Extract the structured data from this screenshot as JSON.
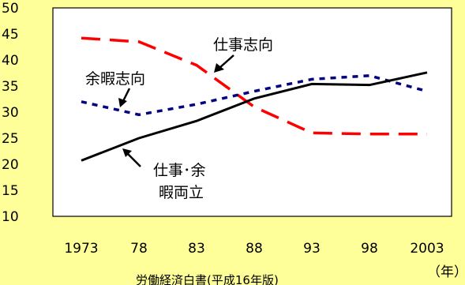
{
  "chart_data": {
    "type": "line",
    "categories": [
      "1973",
      "78",
      "83",
      "88",
      "93",
      "98",
      "2003"
    ],
    "x_unit_label": "（年）",
    "ylim": [
      10,
      50
    ],
    "y_ticks": [
      10,
      15,
      20,
      25,
      30,
      35,
      40,
      45,
      50
    ],
    "grid": false,
    "legend": "none",
    "series": [
      {
        "name": "仕事志向",
        "color": "#ff0000",
        "style": "dashed",
        "values": [
          44.2,
          43.5,
          39,
          31,
          26,
          25.8,
          25.8
        ]
      },
      {
        "name": "余暇志向",
        "color": "#000080",
        "style": "dotted",
        "values": [
          32,
          29.5,
          31.5,
          34,
          36.3,
          37,
          34
        ]
      },
      {
        "name": "仕事・余暇両立",
        "color": "#000000",
        "style": "solid",
        "values": [
          20.7,
          25,
          28.3,
          32.6,
          35.4,
          35.2,
          37.6
        ]
      }
    ],
    "annotations": {
      "work": "仕事志向",
      "leisure": "余暇志向",
      "both_line1": "仕事･余",
      "both_line2": "暇両立"
    },
    "source": "労働経済白書(平成16年版)"
  }
}
